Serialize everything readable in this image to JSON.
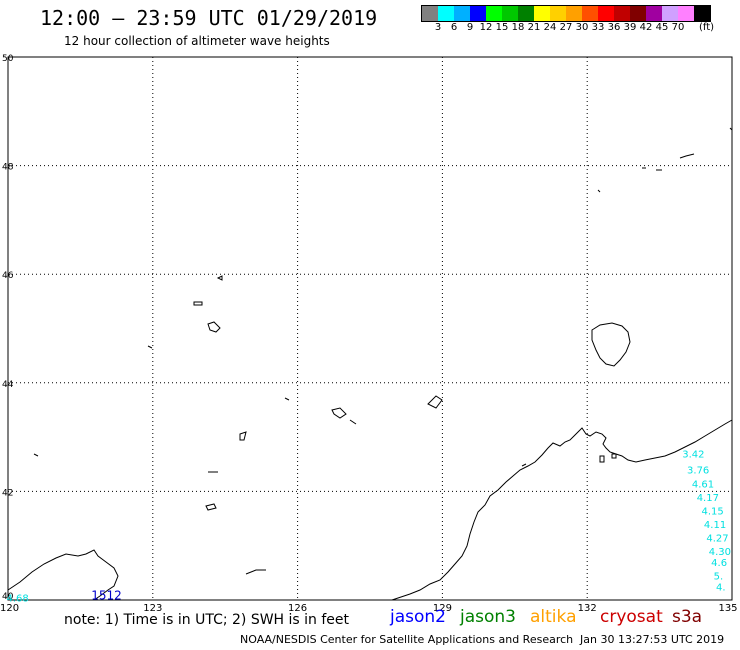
{
  "header": {
    "title": "12:00 – 23:59 UTC 01/29/2019",
    "subtitle": "12 hour collection of altimeter wave heights"
  },
  "colorbar": {
    "swatches": [
      "#808080",
      "#00ffff",
      "#00b0ff",
      "#0000ff",
      "#00ff00",
      "#00c800",
      "#008000",
      "#ffff00",
      "#ffd000",
      "#ffa000",
      "#ff5000",
      "#ff0000",
      "#c00000",
      "#800000",
      "#a000a0",
      "#d0a0ff",
      "#ff80ff",
      "#000000"
    ],
    "labels": [
      "3",
      "6",
      "9",
      "12",
      "15",
      "18",
      "21",
      "24",
      "27",
      "30",
      "33",
      "36",
      "39",
      "42",
      "45",
      "70"
    ],
    "unit": "(ft)"
  },
  "axes": {
    "lat_labels": [
      "50",
      "48",
      "46",
      "44",
      "42",
      "40"
    ],
    "lon_labels": [
      "120",
      "123",
      "126",
      "129",
      "132",
      "135"
    ]
  },
  "chart_data": {
    "type": "map",
    "lat_range": [
      40,
      50
    ],
    "lon_range": [
      120,
      135
    ],
    "grid": true,
    "track_labels": [
      {
        "text": "3.42",
        "lat": 42.7,
        "lon": 134.3
      },
      {
        "text": "3.76",
        "lat": 42.4,
        "lon": 134.4
      },
      {
        "text": "4.61",
        "lat": 42.15,
        "lon": 134.5
      },
      {
        "text": "4.17",
        "lat": 41.9,
        "lon": 134.6
      },
      {
        "text": "4.15",
        "lat": 41.65,
        "lon": 134.7
      },
      {
        "text": "4.11",
        "lat": 41.4,
        "lon": 134.75
      },
      {
        "text": "4.27",
        "lat": 41.15,
        "lon": 134.8
      },
      {
        "text": "4.30",
        "lat": 40.9,
        "lon": 134.85
      },
      {
        "text": "4.6",
        "lat": 40.7,
        "lon": 134.9
      },
      {
        "text": "5.",
        "lat": 40.45,
        "lon": 134.95
      },
      {
        "text": "4.",
        "lat": 40.25,
        "lon": 135.0
      },
      {
        "text": "4.68",
        "lat": 40.05,
        "lon": 120.3
      }
    ],
    "cycle_label": "1512",
    "cycle_label_pos": {
      "lat": 40.05,
      "lon": 121.0
    }
  },
  "note": "note: 1) Time is in UTC; 2) SWH is in feet",
  "satellites": [
    {
      "name": "jason2",
      "color": "#0000ff"
    },
    {
      "name": "jason3",
      "color": "#008000"
    },
    {
      "name": "altika",
      "color": "#ffa000"
    },
    {
      "name": "cryosat",
      "color": "#cc0000"
    },
    {
      "name": "s3a",
      "color": "#800000"
    }
  ],
  "footer": {
    "credit": "NOAA/NESDIS Center for Satellite Applications and Research",
    "timestamp": "Jan 30 13:27:53 UTC 2019"
  }
}
